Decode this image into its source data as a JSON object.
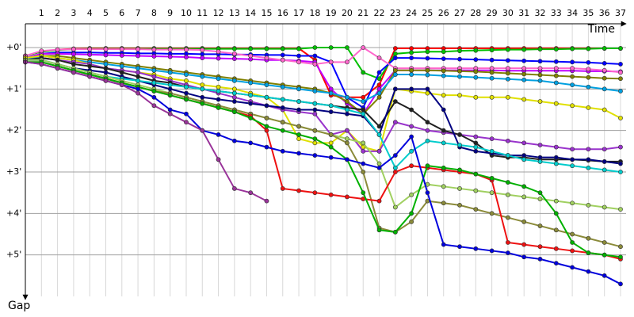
{
  "chart_data": {
    "type": "line",
    "x_label": "Time",
    "y_label": "Gap",
    "x": [
      0,
      1,
      2,
      3,
      4,
      5,
      6,
      7,
      8,
      9,
      10,
      11,
      12,
      13,
      14,
      15,
      16,
      17,
      18,
      19,
      20,
      21,
      22,
      23,
      24,
      25,
      26,
      27,
      28,
      29,
      30,
      31,
      32,
      33,
      34,
      35,
      36,
      37
    ],
    "xlim": [
      0,
      37
    ],
    "xticks": [
      1,
      2,
      3,
      4,
      5,
      6,
      7,
      8,
      9,
      10,
      11,
      12,
      13,
      14,
      15,
      16,
      17,
      18,
      19,
      20,
      21,
      22,
      23,
      24,
      25,
      26,
      27,
      28,
      29,
      30,
      31,
      32,
      33,
      34,
      35,
      36,
      37
    ],
    "ylim": [
      0,
      6
    ],
    "yticks": [
      {
        "value": 0,
        "label": "+0'"
      },
      {
        "value": 1,
        "label": "+1'"
      },
      {
        "value": 2,
        "label": "+2'"
      },
      {
        "value": 3,
        "label": "+3'"
      },
      {
        "value": 4,
        "label": "+4'"
      },
      {
        "value": 5,
        "label": "+5'"
      }
    ],
    "y_inverted": true,
    "grid": true,
    "series": [
      {
        "color": "#ff0000",
        "values": [
          0.2,
          0.1,
          0.05,
          0.03,
          0.02,
          0.02,
          0.02,
          0.02,
          0.02,
          0.02,
          0.02,
          0.02,
          0.02,
          0.02,
          0.02,
          0.02,
          0.02,
          0.02,
          0.3,
          1.15,
          1.2,
          1.2,
          0.9,
          0.02,
          0.02,
          0.02,
          0.02,
          0.02,
          0.02,
          0.02,
          0.02,
          0.02,
          0.02,
          0.02,
          0.02,
          0.02,
          0.02,
          0.02
        ]
      },
      {
        "color": "#00c000",
        "values": [
          0.2,
          0.1,
          0.06,
          0.04,
          0.03,
          0.03,
          0.03,
          0.03,
          0.03,
          0.03,
          0.03,
          0.03,
          0.03,
          0.03,
          0.03,
          0.03,
          0.03,
          0.03,
          0.0,
          0.0,
          0.0,
          0.6,
          0.75,
          0.15,
          0.12,
          0.1,
          0.1,
          0.08,
          0.07,
          0.06,
          0.05,
          0.05,
          0.04,
          0.04,
          0.03,
          0.03,
          0.02,
          0.02
        ]
      },
      {
        "color": "#0000ff",
        "values": [
          0.25,
          0.15,
          0.12,
          0.12,
          0.12,
          0.13,
          0.13,
          0.14,
          0.14,
          0.15,
          0.15,
          0.16,
          0.16,
          0.17,
          0.17,
          0.18,
          0.18,
          0.2,
          0.2,
          0.35,
          1.2,
          1.45,
          0.6,
          0.25,
          0.25,
          0.26,
          0.27,
          0.28,
          0.29,
          0.3,
          0.31,
          0.32,
          0.33,
          0.34,
          0.35,
          0.36,
          0.38,
          0.4
        ]
      },
      {
        "color": "#c000ff",
        "values": [
          0.25,
          0.15,
          0.15,
          0.16,
          0.17,
          0.18,
          0.19,
          0.2,
          0.21,
          0.22,
          0.23,
          0.25,
          0.26,
          0.27,
          0.28,
          0.3,
          0.3,
          0.32,
          0.35,
          1.0,
          1.35,
          1.6,
          1.0,
          0.55,
          0.55,
          0.55,
          0.55,
          0.55,
          0.55,
          0.55,
          0.56,
          0.56,
          0.56,
          0.56,
          0.56,
          0.57,
          0.57,
          0.58
        ]
      },
      {
        "color": "#ff66cc",
        "values": [
          0.2,
          0.08,
          0.05,
          0.04,
          0.04,
          0.04,
          0.04,
          0.04,
          0.05,
          0.05,
          0.05,
          0.06,
          0.1,
          0.15,
          0.2,
          0.25,
          0.3,
          0.35,
          0.4,
          0.35,
          0.35,
          0.0,
          0.25,
          0.5,
          0.5,
          0.5,
          0.5,
          0.5,
          0.5,
          0.5,
          0.5,
          0.5,
          0.5,
          0.5,
          0.5,
          0.52,
          0.55,
          0.6
        ]
      },
      {
        "color": "#808000",
        "values": [
          0.25,
          0.2,
          0.2,
          0.25,
          0.3,
          0.35,
          0.4,
          0.45,
          0.5,
          0.55,
          0.6,
          0.65,
          0.7,
          0.75,
          0.8,
          0.85,
          0.9,
          0.95,
          1.0,
          1.1,
          1.3,
          1.6,
          1.2,
          0.55,
          0.55,
          0.55,
          0.56,
          0.57,
          0.58,
          0.6,
          0.62,
          0.64,
          0.66,
          0.68,
          0.7,
          0.72,
          0.74,
          0.75
        ]
      },
      {
        "color": "#00a0e0",
        "values": [
          0.3,
          0.2,
          0.25,
          0.3,
          0.35,
          0.4,
          0.45,
          0.5,
          0.55,
          0.6,
          0.65,
          0.7,
          0.75,
          0.8,
          0.85,
          0.9,
          0.95,
          1.0,
          1.05,
          1.1,
          1.2,
          1.3,
          1.1,
          0.65,
          0.65,
          0.66,
          0.68,
          0.7,
          0.72,
          0.74,
          0.76,
          0.78,
          0.8,
          0.85,
          0.9,
          0.95,
          1.0,
          1.05
        ]
      },
      {
        "color": "#e0e000",
        "values": [
          0.25,
          0.2,
          0.25,
          0.3,
          0.4,
          0.5,
          0.55,
          0.6,
          0.65,
          0.75,
          0.8,
          0.9,
          0.95,
          1.0,
          1.1,
          1.2,
          1.5,
          2.2,
          2.3,
          2.3,
          2.0,
          2.4,
          2.5,
          1.0,
          1.05,
          1.1,
          1.15,
          1.15,
          1.2,
          1.2,
          1.2,
          1.25,
          1.3,
          1.35,
          1.4,
          1.45,
          1.5,
          1.7
        ]
      },
      {
        "color": "#9933cc",
        "values": [
          0.3,
          0.25,
          0.3,
          0.35,
          0.4,
          0.5,
          0.55,
          0.6,
          0.7,
          0.8,
          0.9,
          1.0,
          1.1,
          1.2,
          1.3,
          1.4,
          1.5,
          1.55,
          1.6,
          2.1,
          2.0,
          2.5,
          2.5,
          1.8,
          1.9,
          2.0,
          2.05,
          2.1,
          2.15,
          2.2,
          2.25,
          2.3,
          2.35,
          2.4,
          2.45,
          2.45,
          2.45,
          2.4
        ]
      },
      {
        "color": "#202020",
        "values": [
          0.3,
          0.25,
          0.3,
          0.4,
          0.45,
          0.5,
          0.6,
          0.7,
          0.8,
          0.85,
          0.95,
          1.0,
          1.05,
          1.1,
          1.15,
          1.2,
          1.25,
          1.3,
          1.35,
          1.4,
          1.45,
          1.5,
          1.9,
          1.3,
          1.5,
          1.8,
          2.0,
          2.1,
          2.3,
          2.6,
          2.65,
          2.65,
          2.7,
          2.7,
          2.7,
          2.72,
          2.75,
          2.75
        ]
      },
      {
        "color": "#000080",
        "values": [
          0.3,
          0.3,
          0.4,
          0.5,
          0.55,
          0.6,
          0.7,
          0.8,
          0.9,
          1.0,
          1.1,
          1.2,
          1.25,
          1.3,
          1.35,
          1.4,
          1.45,
          1.5,
          1.5,
          1.55,
          1.6,
          1.65,
          2.1,
          1.0,
          1.0,
          1.0,
          1.5,
          2.4,
          2.5,
          2.55,
          2.6,
          2.6,
          2.65,
          2.65,
          2.7,
          2.7,
          2.75,
          2.8
        ]
      },
      {
        "color": "#00cccc",
        "values": [
          0.3,
          0.3,
          0.4,
          0.5,
          0.6,
          0.7,
          0.75,
          0.8,
          0.85,
          0.9,
          0.95,
          1.0,
          1.05,
          1.1,
          1.15,
          1.2,
          1.25,
          1.3,
          1.35,
          1.4,
          1.5,
          1.6,
          2.1,
          2.9,
          2.5,
          2.25,
          2.3,
          2.35,
          2.4,
          2.5,
          2.6,
          2.7,
          2.75,
          2.8,
          2.85,
          2.9,
          2.95,
          3.0
        ]
      },
      {
        "color": "#a0d060",
        "values": [
          0.3,
          0.3,
          0.4,
          0.5,
          0.6,
          0.7,
          0.8,
          0.9,
          1.0,
          1.1,
          1.2,
          1.3,
          1.4,
          1.5,
          1.6,
          1.7,
          1.8,
          1.9,
          2.0,
          2.1,
          2.2,
          2.3,
          2.8,
          3.85,
          3.55,
          3.3,
          3.35,
          3.4,
          3.45,
          3.5,
          3.55,
          3.6,
          3.65,
          3.7,
          3.75,
          3.8,
          3.85,
          3.9
        ]
      },
      {
        "color": "#8b8b3a",
        "values": [
          0.35,
          0.35,
          0.45,
          0.55,
          0.65,
          0.75,
          0.85,
          0.95,
          1.05,
          1.1,
          1.2,
          1.3,
          1.4,
          1.5,
          1.6,
          1.7,
          1.8,
          1.9,
          2.0,
          2.1,
          2.3,
          3.0,
          4.35,
          4.45,
          4.2,
          3.7,
          3.75,
          3.8,
          3.9,
          4.0,
          4.1,
          4.2,
          4.3,
          4.4,
          4.5,
          4.6,
          4.7,
          4.8
        ]
      },
      {
        "color": "#ee1111",
        "values": [
          0.35,
          0.35,
          0.45,
          0.55,
          0.65,
          0.75,
          0.85,
          0.95,
          1.05,
          1.15,
          1.25,
          1.35,
          1.45,
          1.55,
          1.65,
          2.0,
          3.4,
          3.45,
          3.5,
          3.55,
          3.6,
          3.65,
          3.7,
          3.0,
          2.85,
          2.9,
          2.95,
          3.0,
          3.05,
          3.2,
          4.7,
          4.75,
          4.8,
          4.85,
          4.9,
          4.95,
          5.0,
          5.1
        ]
      },
      {
        "color": "#00b000",
        "values": [
          0.35,
          0.35,
          0.45,
          0.55,
          0.65,
          0.75,
          0.85,
          0.95,
          1.05,
          1.15,
          1.25,
          1.35,
          1.45,
          1.55,
          1.7,
          1.9,
          2.0,
          2.1,
          2.2,
          2.4,
          2.7,
          3.5,
          4.4,
          4.45,
          4.0,
          2.85,
          2.9,
          2.95,
          3.05,
          3.15,
          3.25,
          3.35,
          3.5,
          4.0,
          4.7,
          4.95,
          5.0,
          5.05
        ]
      },
      {
        "color": "#0000dd",
        "values": [
          0.35,
          0.4,
          0.5,
          0.6,
          0.7,
          0.8,
          0.9,
          1.0,
          1.2,
          1.5,
          1.6,
          2.0,
          2.1,
          2.25,
          2.3,
          2.4,
          2.5,
          2.55,
          2.6,
          2.65,
          2.7,
          2.8,
          2.9,
          2.6,
          2.15,
          3.5,
          4.75,
          4.8,
          4.85,
          4.9,
          4.95,
          5.05,
          5.1,
          5.2,
          5.3,
          5.4,
          5.5,
          5.7
        ]
      },
      {
        "color": "#993399",
        "values": [
          0.35,
          0.4,
          0.5,
          0.6,
          0.7,
          0.8,
          0.9,
          1.1,
          1.4,
          1.6,
          1.8,
          2.0,
          2.7,
          3.4,
          3.5,
          3.7,
          null,
          null,
          null,
          null,
          null,
          null,
          null,
          null,
          null,
          null,
          null,
          null,
          null,
          null,
          null,
          null,
          null,
          null,
          null,
          null,
          null,
          null
        ]
      }
    ]
  }
}
